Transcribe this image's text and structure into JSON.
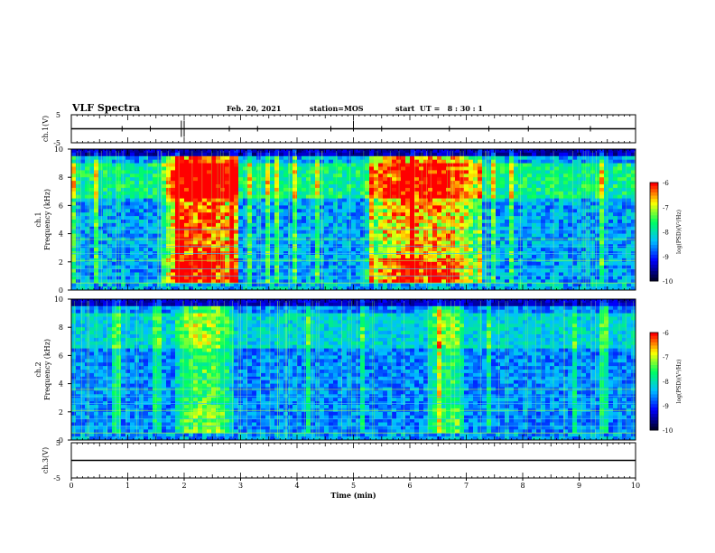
{
  "header": {
    "title": "VLF Spectra",
    "date": "Feb. 20, 2021",
    "station": "station=MOS",
    "start": "start  UT =   8 : 30 : 1"
  },
  "chart_data": [
    {
      "type": "line",
      "panel": "ch1-voltage",
      "ylabel": "ch.1(V)",
      "ylim": [
        -5,
        5
      ],
      "y_ticks": [
        "5",
        "-5"
      ],
      "x": [
        0,
        10
      ],
      "values": [
        0,
        0
      ]
    },
    {
      "type": "heatmap",
      "panel": "ch1-spectrogram",
      "ylabel": "ch.1\nFrequency (kHz)",
      "ylim": [
        0,
        10
      ],
      "y_ticks": [
        "0",
        "2",
        "4",
        "6",
        "8",
        "10"
      ],
      "xlim": [
        0,
        10
      ],
      "bursts_min": [
        [
          1.6,
          3.0,
          1.0
        ],
        [
          5.2,
          7.3,
          0.85
        ]
      ],
      "colorbar": {
        "label": "log(PSD)(V²/Hz)",
        "range": [
          -10,
          -6
        ],
        "ticks": [
          "-6",
          "-7",
          "-8",
          "-9",
          "-10"
        ]
      }
    },
    {
      "type": "heatmap",
      "panel": "ch2-spectrogram",
      "ylabel": "ch.2\nFrequency (kHz)",
      "ylim": [
        0,
        10
      ],
      "y_ticks": [
        "0",
        "2",
        "4",
        "6",
        "8",
        "10"
      ],
      "xlim": [
        0,
        10
      ],
      "bursts_min": [
        [
          1.8,
          2.9,
          0.6
        ],
        [
          6.3,
          7.0,
          0.5
        ]
      ],
      "colorbar": {
        "label": "log(PSD)(V²/Hz)",
        "range": [
          -10,
          -6
        ],
        "ticks": [
          "-6",
          "-7",
          "-8",
          "-9",
          "-10"
        ]
      }
    },
    {
      "type": "line",
      "panel": "ch3-voltage",
      "ylabel": "ch.3(V)",
      "ylim": [
        -5,
        5
      ],
      "y_ticks": [
        "5",
        "-5"
      ],
      "x": [
        0,
        10
      ],
      "values": [
        0,
        0
      ]
    }
  ],
  "x_axis": {
    "label": "Time (min)",
    "ticks": [
      "0",
      "1",
      "2",
      "3",
      "4",
      "5",
      "6",
      "7",
      "8",
      "9",
      "10"
    ]
  },
  "colors": {
    "colormap": [
      "#000033",
      "#0000ff",
      "#00c0ff",
      "#00ff60",
      "#ffff00",
      "#ff0000"
    ],
    "line": "#000000"
  }
}
